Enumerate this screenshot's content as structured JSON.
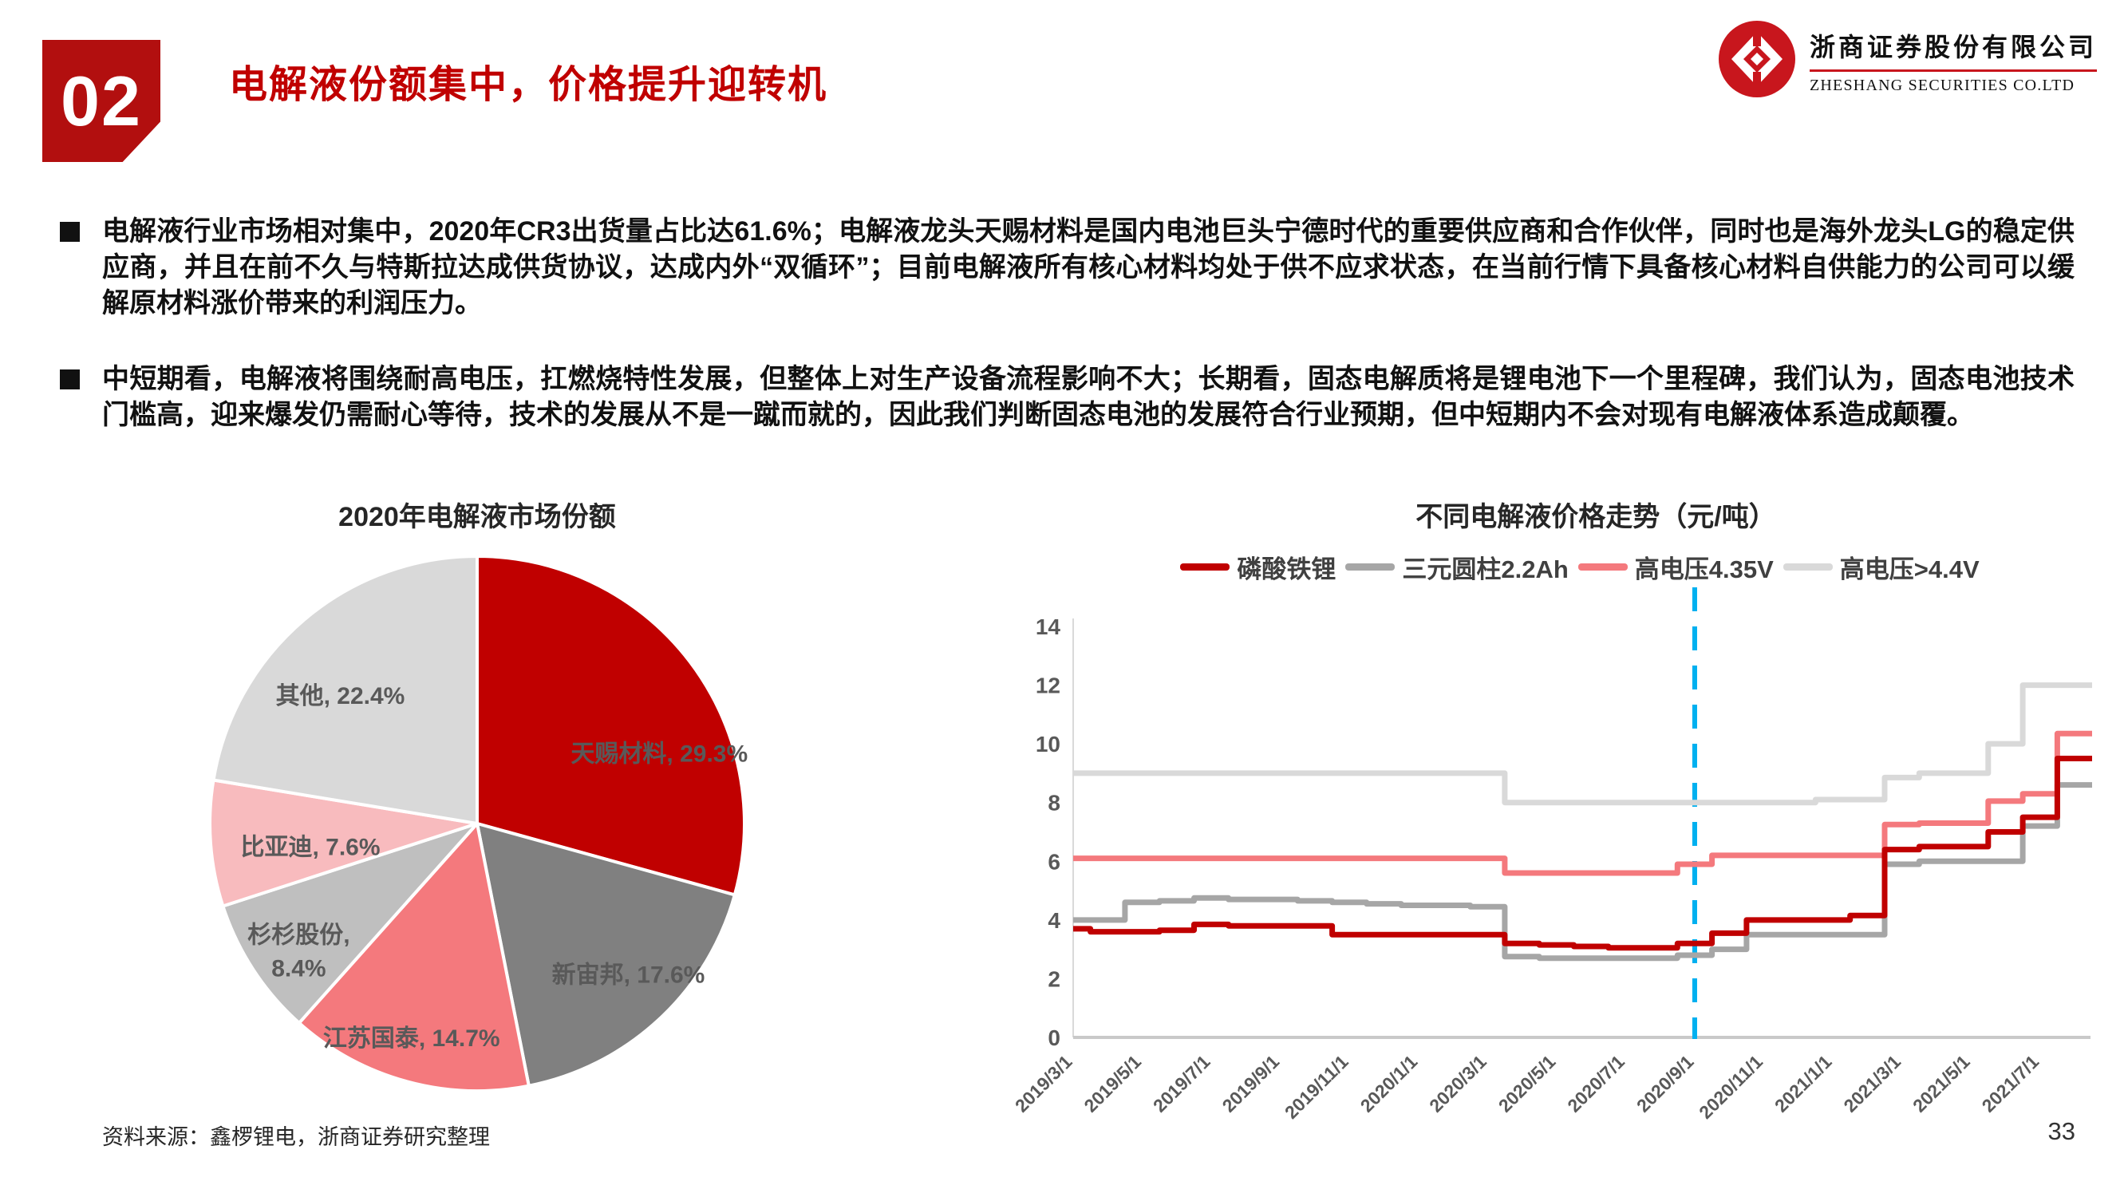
{
  "header": {
    "badge": "02",
    "title": "电解液份额集中，价格提升迎转机",
    "logo_cn": "浙商证券股份有限公司",
    "logo_en": "ZHESHANG SECURITIES CO.LTD",
    "brand_red": "#C8161D"
  },
  "bullets": [
    "电解液行业市场相对集中，2020年CR3出货量占比达61.6%；电解液龙头天赐材料是国内电池巨头宁德时代的重要供应商和合作伙伴，同时也是海外龙头LG的稳定供应商，并且在前不久与特斯拉达成供货协议，达成内外“双循环”；目前电解液所有核心材料均处于供不应求状态，在当前行情下具备核心材料自供能力的公司可以缓解原材料涨价带来的利润压力。",
    "中短期看，电解液将围绕耐高电压，扛燃烧特性发展，但整体上对生产设备流程影响不大；长期看，固态电解质将是锂电池下一个里程碑，我们认为，固态电池技术门槛高，迎来爆发仍需耐心等待，技术的发展从不是一蹴而就的，因此我们判断固态电池的发展符合行业预期，但中短期内不会对现有电解液体系造成颠覆。"
  ],
  "footer": {
    "source": "资料来源：鑫椤锂电，浙商证券研究整理",
    "page": "33"
  },
  "chart_data": [
    {
      "type": "pie",
      "title": "2020年电解液市场份额",
      "start_angle_deg": 0,
      "direction": "clockwise",
      "label_color": "#595959",
      "slices": [
        {
          "label": "天赐材料",
          "value": 29.3,
          "color": "#C00000",
          "text": "天赐材料, 29.3%"
        },
        {
          "label": "新宙邦",
          "value": 17.6,
          "color": "#808080",
          "text": "新宙邦, 17.6%"
        },
        {
          "label": "江苏国泰",
          "value": 14.7,
          "color": "#F4797D",
          "text": "江苏国泰, 14.7%"
        },
        {
          "label": "杉杉股份",
          "value": 8.4,
          "color": "#BFBFBF",
          "text": "杉杉股份, 8.4%",
          "two_line": true
        },
        {
          "label": "比亚迪",
          "value": 7.6,
          "color": "#F8BBBE",
          "text": "比亚迪, 7.6%"
        },
        {
          "label": "其他",
          "value": 22.4,
          "color": "#D9D9D9",
          "text": "其他, 22.4%"
        }
      ]
    },
    {
      "type": "line",
      "title": "不同电解液价格走势（元/吨）",
      "ylabel": "",
      "ylim": [
        0,
        14
      ],
      "y_ticks": [
        0,
        2,
        4,
        6,
        8,
        10,
        12,
        14
      ],
      "x_ticks": [
        "2019/3/1",
        "2019/5/1",
        "2019/7/1",
        "2019/9/1",
        "2019/11/1",
        "2020/1/1",
        "2020/3/1",
        "2020/5/1",
        "2020/7/1",
        "2020/9/1",
        "2020/11/1",
        "2021/1/1",
        "2021/3/1",
        "2021/5/1",
        "2021/7/1"
      ],
      "months": [
        "2019/3",
        "2019/4",
        "2019/5",
        "2019/6",
        "2019/7",
        "2019/8",
        "2019/9",
        "2019/10",
        "2019/11",
        "2019/12",
        "2020/1",
        "2020/2",
        "2020/3",
        "2020/4",
        "2020/5",
        "2020/6",
        "2020/7",
        "2020/8",
        "2020/9",
        "2020/10",
        "2020/11",
        "2020/12",
        "2021/1",
        "2021/2",
        "2021/3",
        "2021/4",
        "2021/5",
        "2021/6",
        "2021/7",
        "2021/8"
      ],
      "marker_line": {
        "x": "2020/9",
        "color": "#00B0F0",
        "style": "dashed"
      },
      "grid": false,
      "legend_position": "top",
      "series": [
        {
          "name": "磷酸铁锂",
          "color": "#C00000",
          "values": [
            3.7,
            3.6,
            3.6,
            3.65,
            3.85,
            3.8,
            3.8,
            3.8,
            3.5,
            3.5,
            3.5,
            3.5,
            3.5,
            3.2,
            3.15,
            3.1,
            3.05,
            3.05,
            3.2,
            3.55,
            4.0,
            4.0,
            4.0,
            4.15,
            6.4,
            6.5,
            6.5,
            7.0,
            7.5,
            9.5
          ]
        },
        {
          "name": "三元圆柱2.2Ah",
          "color": "#A6A6A6",
          "values": [
            4.0,
            4.0,
            4.6,
            4.65,
            4.75,
            4.7,
            4.7,
            4.65,
            4.6,
            4.55,
            4.5,
            4.5,
            4.45,
            2.75,
            2.7,
            2.7,
            2.7,
            2.7,
            2.8,
            3.0,
            3.5,
            3.5,
            3.5,
            3.5,
            5.9,
            6.0,
            6.0,
            6.0,
            7.2,
            8.6
          ]
        },
        {
          "name": "高电压4.35V",
          "color": "#F4797D",
          "values": [
            6.1,
            6.1,
            6.1,
            6.1,
            6.1,
            6.1,
            6.1,
            6.1,
            6.1,
            6.1,
            6.1,
            6.1,
            6.1,
            5.6,
            5.6,
            5.6,
            5.6,
            5.6,
            5.9,
            6.2,
            6.2,
            6.2,
            6.2,
            6.2,
            7.25,
            7.3,
            7.3,
            8.05,
            8.3,
            10.35
          ]
        },
        {
          "name": "高电压>4.4V",
          "color": "#D9D9D9",
          "values": [
            9.0,
            9.0,
            9.0,
            9.0,
            9.0,
            9.0,
            9.0,
            9.0,
            9.0,
            9.0,
            9.0,
            9.0,
            9.0,
            8.0,
            8.0,
            8.0,
            8.0,
            8.0,
            8.0,
            8.0,
            8.0,
            8.0,
            8.1,
            8.1,
            8.85,
            9.0,
            9.0,
            10.0,
            12.0,
            12.0
          ]
        }
      ]
    }
  ]
}
